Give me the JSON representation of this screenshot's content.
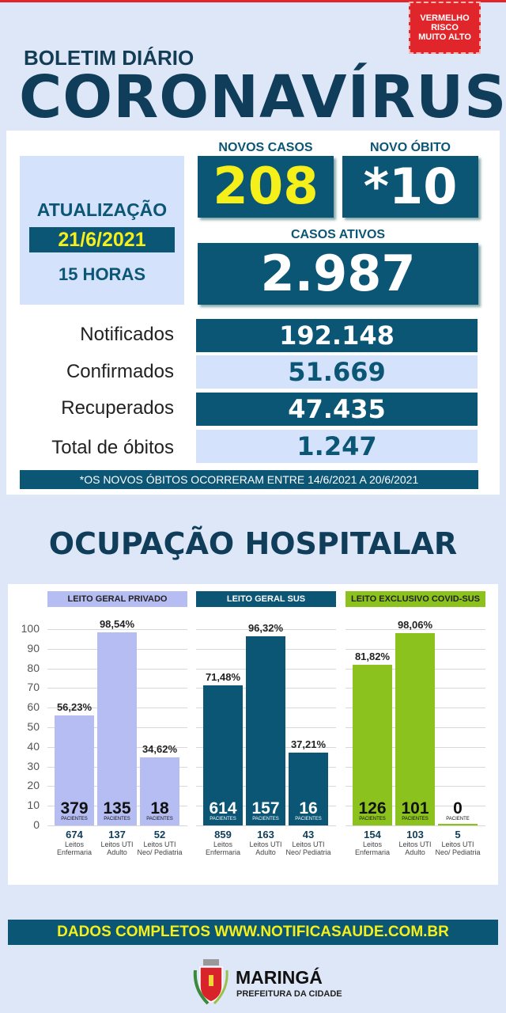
{
  "alert_badge": {
    "lines": [
      "VERMELHO",
      "RISCO",
      "MUITO ALTO"
    ],
    "color": "#e0262b"
  },
  "header": {
    "subtitle": "BOLETIM DIÁRIO",
    "title": "CORONAVÍRUS"
  },
  "update": {
    "label": "ATUALIZAÇÃO",
    "date": "21/6/2021",
    "time": "15 HORAS"
  },
  "new_cases": {
    "label": "NOVOS CASOS",
    "value": "208"
  },
  "new_deaths": {
    "label": "NOVO ÓBITO",
    "value": "*10"
  },
  "active_cases": {
    "label": "CASOS ATIVOS",
    "value": "2.987"
  },
  "stats": [
    {
      "label": "Notificados",
      "value": "192.148"
    },
    {
      "label": "Confirmados",
      "value": "51.669"
    },
    {
      "label": "Recuperados",
      "value": "47.435"
    },
    {
      "label": "Total de óbitos",
      "value": "1.247"
    }
  ],
  "note": "*OS NOVOS ÓBITOS OCORRERAM ENTRE 14/6/2021 A 20/6/2021",
  "section_title": "OCUPAÇÃO HOSPITALAR",
  "chart_data": {
    "type": "bar",
    "ylim": [
      0,
      100
    ],
    "yticks": [
      0,
      10,
      20,
      30,
      40,
      50,
      60,
      70,
      80,
      90,
      100
    ],
    "grid": true,
    "groups": [
      {
        "name": "LEITO GERAL PRIVADO",
        "color": "#b5bdf2",
        "header_text": "#222",
        "bars": [
          {
            "value": 56.23,
            "label": "56,23%",
            "patients": "379",
            "patients_label": "PACIENTES",
            "beds": "674",
            "bed_type": "Leitos Enfermaria"
          },
          {
            "value": 98.54,
            "label": "98,54%",
            "patients": "135",
            "patients_label": "PACIENTES",
            "beds": "137",
            "bed_type": "Leitos UTI Adulto"
          },
          {
            "value": 34.62,
            "label": "34,62%",
            "patients": "18",
            "patients_label": "PACIENTES",
            "beds": "52",
            "bed_type": "Leitos UTI Neo/ Pediatria"
          }
        ]
      },
      {
        "name": "LEITO GERAL SUS",
        "color": "#0b5575",
        "header_text": "#fff",
        "bars": [
          {
            "value": 71.48,
            "label": "71,48%",
            "patients": "614",
            "patients_label": "PACIENTES",
            "beds": "859",
            "bed_type": "Leitos Enfermaria"
          },
          {
            "value": 96.32,
            "label": "96,32%",
            "patients": "157",
            "patients_label": "PACIENTES",
            "beds": "163",
            "bed_type": "Leitos UTI Adulto"
          },
          {
            "value": 37.21,
            "label": "37,21%",
            "patients": "16",
            "patients_label": "PACIENTES",
            "beds": "43",
            "bed_type": "Leitos UTI Neo/ Pediatria"
          }
        ]
      },
      {
        "name": "LEITO EXCLUSIVO COVID-SUS",
        "color": "#8cc21e",
        "header_text": "#222",
        "bars": [
          {
            "value": 81.82,
            "label": "81,82%",
            "patients": "126",
            "patients_label": "PACIENTES",
            "beds": "154",
            "bed_type": "Leitos Enfermaria"
          },
          {
            "value": 98.06,
            "label": "98,06%",
            "patients": "101",
            "patients_label": "PACIENTES",
            "beds": "103",
            "bed_type": "Leitos UTI Adulto"
          },
          {
            "value": 0,
            "label": "",
            "patients": "0",
            "patients_label": "PACIENTE",
            "beds": "5",
            "bed_type": "Leitos UTI Neo/ Pediatria"
          }
        ]
      }
    ]
  },
  "footer": "DADOS COMPLETOS  WWW.NOTIFICASAUDE.COM.BR",
  "logo": {
    "city": "MARINGÁ",
    "subtitle": "PREFEITURA DA CIDADE"
  }
}
